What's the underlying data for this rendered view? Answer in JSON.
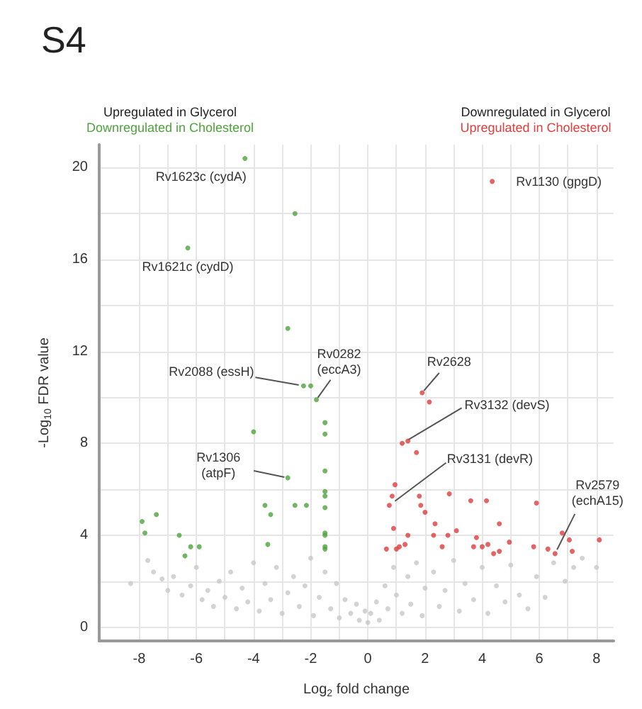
{
  "chart_data": {
    "type": "scatter",
    "title": "S4",
    "xlabel": "Log$_{2}$ fold change",
    "ylabel": "-Log$_{10}$ FDR value",
    "xlim": [
      -9.4,
      8.6
    ],
    "ylim": [
      -0.6,
      21
    ],
    "xticks": [
      -8,
      {
        "value": -7,
        "label": null
      },
      -6,
      {
        "value": -5,
        "label": null
      },
      -4,
      {
        "value": -3,
        "label": null
      },
      -2,
      {
        "value": -1,
        "label": null
      },
      0,
      {
        "value": 1,
        "label": null
      },
      2,
      {
        "value": 3,
        "label": null
      },
      4,
      {
        "value": 5,
        "label": null
      },
      6,
      {
        "value": 7,
        "label": null
      },
      8
    ],
    "yticks": [
      0,
      {
        "value": 2,
        "label": null
      },
      4,
      {
        "value": 6,
        "label": null
      },
      8,
      {
        "value": 10,
        "label": null
      },
      12,
      {
        "value": 14,
        "label": null
      },
      16,
      {
        "value": 18,
        "label": null
      },
      20
    ],
    "grid": true,
    "legend": false,
    "marker": "circle",
    "series": [
      {
        "color": "#c8c8c8",
        "x": [
          -8.3,
          -7.7,
          -7.5,
          -7.2,
          -7.0,
          -6.8,
          -6.5,
          -6.2,
          -6.0,
          -5.8,
          -5.6,
          -5.4,
          -5.2,
          -5.0,
          -4.8,
          -4.6,
          -4.4,
          -4.2,
          -4.0,
          -3.8,
          -3.6,
          -3.4,
          -3.2,
          -3.0,
          -2.8,
          -2.6,
          -2.4,
          -2.2,
          -2.0,
          -1.9,
          -1.7,
          -1.5,
          -1.3,
          -1.1,
          -1.0,
          -0.8,
          -0.6,
          -0.4,
          -0.3,
          -0.1,
          0.0,
          0.1,
          0.3,
          0.4,
          0.6,
          0.7,
          0.9,
          1.0,
          1.2,
          1.4,
          1.5,
          1.7,
          1.9,
          2.0,
          2.3,
          2.5,
          2.7,
          3.0,
          3.2,
          3.4,
          3.7,
          4.0,
          4.2,
          4.5,
          4.8,
          5.0,
          5.3,
          5.6,
          5.9,
          6.2,
          6.5,
          6.9,
          7.2,
          7.5,
          8.0
        ],
        "values": [
          1.9,
          2.9,
          2.4,
          2.1,
          1.6,
          2.2,
          1.4,
          1.8,
          2.6,
          1.2,
          1.6,
          0.9,
          2.0,
          1.3,
          2.4,
          0.8,
          1.7,
          1.1,
          2.8,
          0.7,
          1.9,
          1.2,
          2.6,
          0.6,
          1.5,
          2.2,
          0.9,
          1.8,
          3.0,
          0.5,
          1.3,
          2.4,
          0.8,
          1.9,
          0.4,
          1.2,
          0.6,
          1.0,
          0.3,
          0.7,
          0.2,
          0.6,
          1.1,
          0.3,
          1.8,
          0.8,
          2.6,
          1.4,
          0.6,
          2.2,
          1.0,
          2.8,
          0.5,
          1.7,
          2.4,
          0.9,
          1.6,
          2.9,
          0.7,
          1.9,
          1.2,
          2.6,
          0.6,
          1.8,
          1.1,
          2.7,
          1.4,
          0.8,
          2.2,
          1.3,
          2.8,
          2.0,
          2.6,
          3.0,
          2.6
        ]
      },
      {
        "name": "Downregulated in Cholesterol",
        "color": "#4fa33c",
        "x": [
          -4.3,
          -2.55,
          -6.3,
          -2.8,
          -2.25,
          -2.0,
          -1.8,
          -4.0,
          -2.8,
          -3.6,
          -3.4,
          -2.55,
          -2.15,
          -3.5,
          -7.9,
          -7.8,
          -7.4,
          -6.6,
          -6.2,
          -5.9,
          -6.4,
          -1.5,
          -1.5,
          -1.5,
          -1.5,
          -1.5,
          -1.5,
          -1.5,
          -1.5,
          -1.5,
          -1.5
        ],
        "values": [
          20.4,
          18.0,
          16.5,
          13.0,
          10.5,
          10.5,
          9.9,
          8.5,
          6.5,
          5.3,
          4.9,
          5.3,
          5.3,
          3.6,
          4.6,
          4.1,
          4.9,
          4.0,
          3.5,
          3.5,
          3.1,
          8.9,
          8.4,
          6.8,
          5.9,
          5.7,
          5.2,
          4.1,
          4.0,
          3.5,
          3.4
        ]
      },
      {
        "name": "Upregulated in Cholesterol",
        "color": "#e03c3c",
        "x": [
          4.35,
          1.9,
          2.15,
          1.2,
          1.4,
          1.7,
          0.95,
          0.85,
          0.75,
          1.8,
          1.85,
          2.0,
          2.85,
          3.6,
          4.15,
          5.9,
          0.9,
          2.35,
          2.3,
          3.1,
          2.8,
          1.4,
          1.3,
          1.1,
          1.0,
          0.65,
          2.6,
          3.8,
          3.7,
          4.0,
          4.2,
          4.6,
          4.4,
          4.6,
          4.95,
          5.8,
          6.3,
          6.55,
          6.8,
          7.05,
          7.15,
          8.1
        ],
        "values": [
          19.4,
          10.2,
          9.8,
          8.0,
          8.1,
          7.6,
          6.2,
          5.7,
          5.3,
          5.7,
          5.3,
          5.0,
          5.8,
          5.5,
          5.5,
          5.4,
          4.3,
          4.5,
          4.0,
          4.2,
          4.0,
          4.0,
          3.6,
          3.5,
          3.4,
          3.4,
          3.5,
          3.9,
          3.5,
          3.5,
          3.6,
          4.5,
          3.2,
          3.3,
          3.7,
          3.5,
          3.4,
          3.2,
          4.1,
          3.8,
          3.3,
          3.8
        ]
      }
    ],
    "annotations": [
      "Upregulated in Glycerol",
      "Downregulated in Glycerol",
      {
        "text": "Rv1623c (cydA)",
        "x": -4.3,
        "y": 20.4
      },
      {
        "text": "Rv1621c (cydD)",
        "x": -6.3,
        "y": 16.5
      },
      {
        "text": "Rv2088 (essH)",
        "x": -2.25,
        "y": 10.5
      },
      {
        "text": "Rv0282\n(eccA3)",
        "x": -1.8,
        "y": 9.9
      },
      {
        "text": "Rv1306\n(atpF)",
        "x": -2.8,
        "y": 6.5
      },
      {
        "text": "Rv2628",
        "x": 1.9,
        "y": 10.2
      },
      {
        "text": "Rv3132 (devS)",
        "x": 1.2,
        "y": 8.0
      },
      {
        "text": "Rv3131 (devR)",
        "x": 0.75,
        "y": 5.3
      },
      {
        "text": "Rv2579\n(echA15)",
        "x": 6.55,
        "y": 3.2
      },
      {
        "text": "Rv1130 (gpgD)",
        "x": 4.35,
        "y": 19.4
      }
    ]
  }
}
